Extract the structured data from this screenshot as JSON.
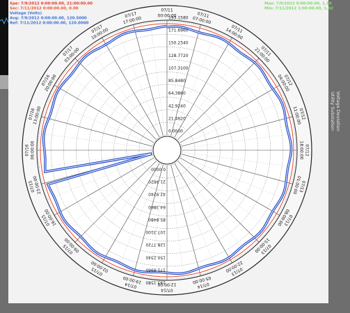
{
  "header": {
    "left_lines": [
      {
        "text": "Spe: 7/9/2012 0:00:00.00, 21:00:00.00",
        "color": "#e8362a"
      },
      {
        "text": "Sec: 7/11/2012 0:00:00.00, 0.00",
        "color": "#e85a2a"
      },
      {
        "text": "Voltage (Volts)",
        "color": "#3a6fd8"
      },
      {
        "text": "Avg: 7/9/2012 0:00:00.00, 120.5000",
        "color": "#3a6fd8"
      },
      {
        "text": "Ref: 7/11/2012 0:00:00.00, 120.0000",
        "color": "#3a6fd8"
      }
    ],
    "right_lines": [
      {
        "text": "Max: 7/9/2012 0:00:00.00, 1.10",
        "color": "#7fd86a"
      },
      {
        "text": "Min: 7/11/2012 1:00:00.00, 1.02",
        "color": "#7fd86a"
      }
    ]
  },
  "side_title": [
    "Utility Substation",
    "Voltage Deviation"
  ],
  "scale_labels": [
    "0.0000",
    "21.4620",
    "42.9240",
    "64.3860",
    "85.8480",
    "107.3100",
    "128.7720",
    "150.2340",
    "171.6960",
    "193.1580"
  ],
  "time_labels": [
    {
      "date": "07/11",
      "time": "00:00:00"
    },
    {
      "date": "07/11",
      "time": "07:00:00"
    },
    {
      "date": "07/11",
      "time": "14:00:00"
    },
    {
      "date": "07/11",
      "time": "21:00:00"
    },
    {
      "date": "07/12",
      "time": "04:00:00"
    },
    {
      "date": "07/12",
      "time": "11:00:00"
    },
    {
      "date": "07/12",
      "time": "18:00:00"
    },
    {
      "date": "07/13",
      "time": "01:00:00"
    },
    {
      "date": "07/13",
      "time": "08:00:00"
    },
    {
      "date": "07/13",
      "time": "15:00:00"
    },
    {
      "date": "07/13",
      "time": "22:00:00"
    },
    {
      "date": "07/14",
      "time": "05:00:00"
    },
    {
      "date": "07/14",
      "time": "12:00:00"
    },
    {
      "date": "07/14",
      "time": "19:00:00"
    },
    {
      "date": "07/15",
      "time": "02:00:00"
    },
    {
      "date": "07/15",
      "time": "09:00:00"
    },
    {
      "date": "07/15",
      "time": "16:00:00"
    },
    {
      "date": "07/15",
      "time": "23:00:00"
    },
    {
      "date": "07/16",
      "time": "06:00:00"
    },
    {
      "date": "07/16",
      "time": "13:00:00"
    },
    {
      "date": "07/16",
      "time": "20:00:00"
    },
    {
      "date": "07/17",
      "time": "03:00:00"
    },
    {
      "date": "07/17",
      "time": "10:00:00"
    },
    {
      "date": "07/17",
      "time": "17:00:00"
    }
  ]
}
